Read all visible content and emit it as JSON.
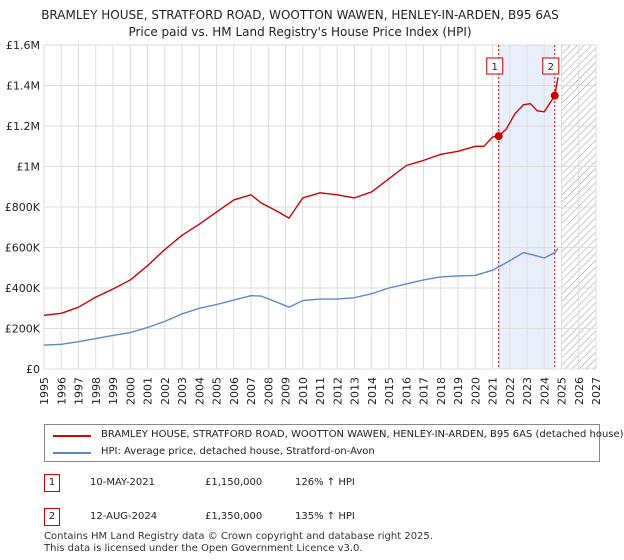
{
  "title_line1": "BRAMLEY HOUSE, STRATFORD ROAD, WOOTTON WAWEN, HENLEY-IN-ARDEN, B95 6AS",
  "title_line2": "Price paid vs. HM Land Registry's House Price Index (HPI)",
  "colors": {
    "property": "#cc0000",
    "hpi": "#5b8ac6",
    "highlight": "#e8eefa",
    "grid": "#dddddd"
  },
  "chart_data": {
    "type": "line",
    "xlim": [
      1995,
      2027
    ],
    "ylim": [
      0,
      1600000
    ],
    "yticks": [
      {
        "value": 0,
        "label": "£0"
      },
      {
        "value": 200000,
        "label": "£200K"
      },
      {
        "value": 400000,
        "label": "£400K"
      },
      {
        "value": 600000,
        "label": "£600K"
      },
      {
        "value": 800000,
        "label": "£800K"
      },
      {
        "value": 1000000,
        "label": "£1M"
      },
      {
        "value": 1200000,
        "label": "£1.2M"
      },
      {
        "value": 1400000,
        "label": "£1.4M"
      },
      {
        "value": 1600000,
        "label": "£1.6M"
      }
    ],
    "xticks": [
      "1995",
      "1996",
      "1997",
      "1998",
      "1999",
      "2000",
      "2001",
      "2002",
      "2003",
      "2004",
      "2005",
      "2006",
      "2007",
      "2008",
      "2009",
      "2010",
      "2011",
      "2012",
      "2013",
      "2014",
      "2015",
      "2016",
      "2017",
      "2018",
      "2019",
      "2020",
      "2021",
      "2022",
      "2023",
      "2024",
      "2025",
      "2026",
      "2027"
    ],
    "highlight_range": [
      2021.36,
      2024.61
    ],
    "hatch_range": [
      2025.0,
      2027.0
    ],
    "series": [
      {
        "name": "BRAMLEY HOUSE, STRATFORD ROAD, WOOTTON WAWEN, HENLEY-IN-ARDEN, B95 6AS (detached house)",
        "x": [
          1995,
          1996,
          1997,
          1998,
          1999,
          2000,
          2001,
          2002,
          2003,
          2004,
          2005,
          2006,
          2007,
          2007.6,
          2008.5,
          2009.2,
          2010,
          2011,
          2012,
          2013,
          2014,
          2015,
          2016,
          2017,
          2018,
          2019,
          2020,
          2020.5,
          2021,
          2021.36,
          2021.8,
          2022.3,
          2022.8,
          2023.2,
          2023.6,
          2024.0,
          2024.61,
          2024.8
        ],
        "values": [
          265000,
          275000,
          305000,
          355000,
          395000,
          440000,
          510000,
          590000,
          660000,
          715000,
          775000,
          835000,
          860000,
          820000,
          780000,
          745000,
          845000,
          870000,
          860000,
          845000,
          875000,
          940000,
          1005000,
          1030000,
          1060000,
          1075000,
          1100000,
          1100000,
          1145000,
          1150000,
          1185000,
          1260000,
          1305000,
          1310000,
          1275000,
          1270000,
          1350000,
          1440000
        ]
      },
      {
        "name": "HPI: Average price, detached house, Stratford-on-Avon",
        "x": [
          1995,
          1996,
          1997,
          1998,
          1999,
          2000,
          2001,
          2002,
          2003,
          2004,
          2005,
          2006,
          2007,
          2007.6,
          2008.5,
          2009.2,
          2010,
          2011,
          2012,
          2013,
          2014,
          2015,
          2016,
          2017,
          2018,
          2019,
          2020,
          2021,
          2022,
          2022.8,
          2023.5,
          2024,
          2024.61,
          2024.8
        ],
        "values": [
          118000,
          122000,
          135000,
          150000,
          166000,
          180000,
          205000,
          235000,
          272000,
          300000,
          318000,
          340000,
          362000,
          360000,
          330000,
          305000,
          338000,
          345000,
          345000,
          352000,
          372000,
          400000,
          420000,
          440000,
          455000,
          460000,
          462000,
          488000,
          535000,
          575000,
          560000,
          548000,
          575000,
          595000
        ]
      }
    ],
    "sales": [
      {
        "id": "1",
        "x": 2021.36,
        "value": 1150000
      },
      {
        "id": "2",
        "x": 2024.61,
        "value": 1350000
      }
    ]
  },
  "legend": {
    "property_label": "BRAMLEY HOUSE, STRATFORD ROAD, WOOTTON WAWEN, HENLEY-IN-ARDEN, B95 6AS (detached house)",
    "hpi_label": "HPI: Average price, detached house, Stratford-on-Avon"
  },
  "sales_table": [
    {
      "id": "1",
      "date": "10-MAY-2021",
      "price": "£1,150,000",
      "hpi": "126% ↑ HPI"
    },
    {
      "id": "2",
      "date": "12-AUG-2024",
      "price": "£1,350,000",
      "hpi": "135% ↑ HPI"
    }
  ],
  "footer_line1": "Contains HM Land Registry data © Crown copyright and database right 2025.",
  "footer_line2": "This data is licensed under the Open Government Licence v3.0."
}
